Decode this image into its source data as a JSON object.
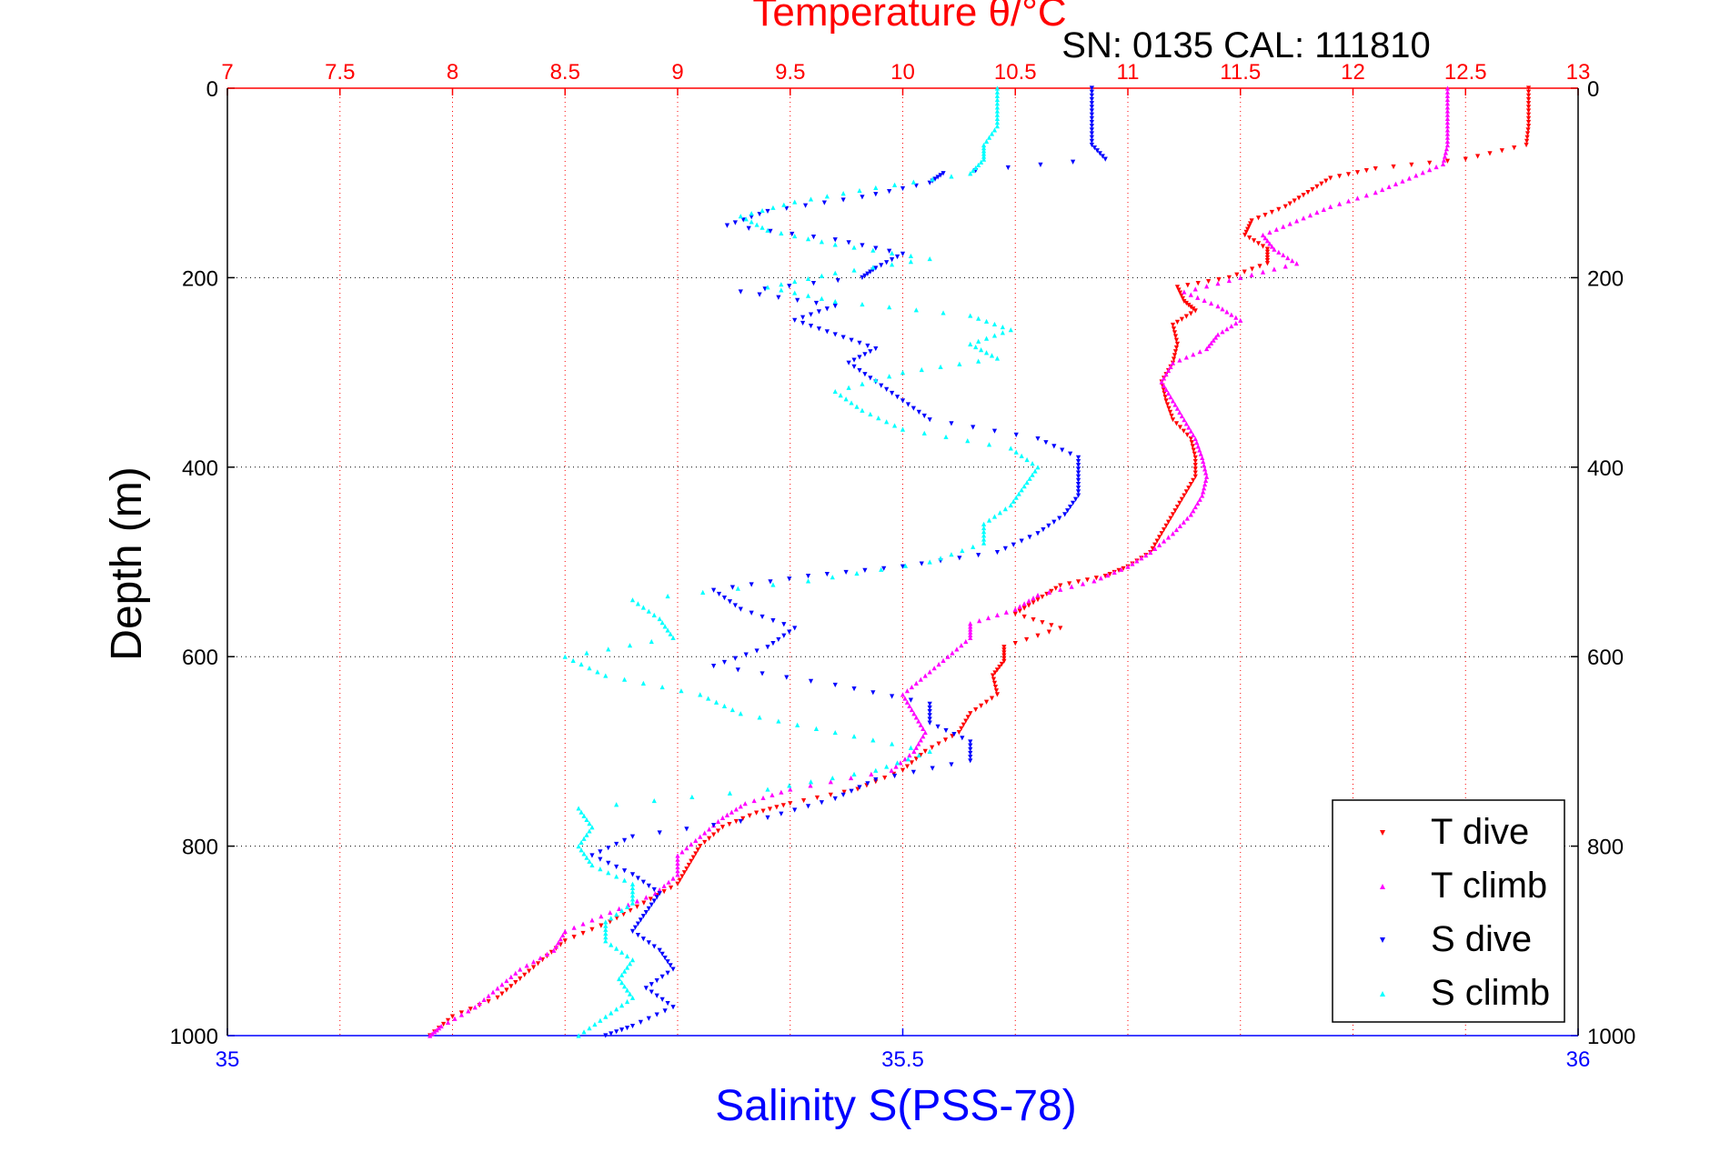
{
  "chart_data": {
    "type": "scatter",
    "title_top": "Temperature θ/°C",
    "subtitle": "SN: 0135  CAL: 111810",
    "ylabel": "Depth (m)",
    "xlabel_bottom": "Salinity S(PSS-78)",
    "top_axis": {
      "label": "Temperature θ/°C",
      "range": [
        7,
        13
      ],
      "ticks": [
        "7",
        "7.5",
        "8",
        "8.5",
        "9",
        "9.5",
        "10",
        "10.5",
        "11",
        "11.5",
        "12",
        "12.5",
        "13"
      ],
      "color": "#ff0000"
    },
    "bottom_axis": {
      "label": "Salinity S(PSS-78)",
      "range": [
        35,
        36
      ],
      "ticks": [
        "35",
        "35.5",
        "36"
      ],
      "color": "#0000ff"
    },
    "y_axis": {
      "range": [
        0,
        1000
      ],
      "reversed": true,
      "ticks": [
        "0",
        "200",
        "400",
        "600",
        "800",
        "1000"
      ]
    },
    "grid": true,
    "legend_position": "bottom-right",
    "series": [
      {
        "name": "T dive",
        "axis": "temperature",
        "marker": "down-triangle",
        "color": "#ff0000",
        "points": [
          [
            0,
            12.78
          ],
          [
            20,
            12.78
          ],
          [
            40,
            12.78
          ],
          [
            60,
            12.77
          ],
          [
            75,
            12.5
          ],
          [
            85,
            12.1
          ],
          [
            95,
            11.9
          ],
          [
            110,
            11.8
          ],
          [
            125,
            11.7
          ],
          [
            140,
            11.55
          ],
          [
            155,
            11.52
          ],
          [
            170,
            11.62
          ],
          [
            185,
            11.62
          ],
          [
            200,
            11.45
          ],
          [
            210,
            11.22
          ],
          [
            225,
            11.25
          ],
          [
            235,
            11.3
          ],
          [
            250,
            11.2
          ],
          [
            270,
            11.22
          ],
          [
            290,
            11.2
          ],
          [
            310,
            11.15
          ],
          [
            330,
            11.17
          ],
          [
            350,
            11.2
          ],
          [
            370,
            11.28
          ],
          [
            390,
            11.3
          ],
          [
            410,
            11.3
          ],
          [
            430,
            11.25
          ],
          [
            450,
            11.2
          ],
          [
            470,
            11.15
          ],
          [
            490,
            11.1
          ],
          [
            505,
            11.0
          ],
          [
            515,
            10.9
          ],
          [
            525,
            10.7
          ],
          [
            540,
            10.6
          ],
          [
            555,
            10.5
          ],
          [
            570,
            10.7
          ],
          [
            590,
            10.45
          ],
          [
            605,
            10.45
          ],
          [
            620,
            10.4
          ],
          [
            640,
            10.42
          ],
          [
            660,
            10.3
          ],
          [
            680,
            10.25
          ],
          [
            700,
            10.1
          ],
          [
            720,
            10.0
          ],
          [
            740,
            9.8
          ],
          [
            755,
            9.5
          ],
          [
            765,
            9.35
          ],
          [
            780,
            9.2
          ],
          [
            800,
            9.1
          ],
          [
            820,
            9.05
          ],
          [
            840,
            9.0
          ],
          [
            860,
            8.85
          ],
          [
            880,
            8.7
          ],
          [
            900,
            8.5
          ],
          [
            920,
            8.4
          ],
          [
            940,
            8.3
          ],
          [
            960,
            8.2
          ],
          [
            980,
            8.0
          ],
          [
            1000,
            7.9
          ]
        ]
      },
      {
        "name": "T climb",
        "axis": "temperature",
        "marker": "up-triangle",
        "color": "#ff00ff",
        "points": [
          [
            0,
            12.42
          ],
          [
            20,
            12.42
          ],
          [
            40,
            12.42
          ],
          [
            60,
            12.42
          ],
          [
            80,
            12.4
          ],
          [
            95,
            12.25
          ],
          [
            110,
            12.1
          ],
          [
            125,
            11.9
          ],
          [
            140,
            11.75
          ],
          [
            155,
            11.6
          ],
          [
            170,
            11.65
          ],
          [
            185,
            11.75
          ],
          [
            200,
            11.5
          ],
          [
            215,
            11.25
          ],
          [
            230,
            11.4
          ],
          [
            245,
            11.5
          ],
          [
            260,
            11.4
          ],
          [
            275,
            11.35
          ],
          [
            290,
            11.2
          ],
          [
            310,
            11.15
          ],
          [
            330,
            11.2
          ],
          [
            350,
            11.25
          ],
          [
            370,
            11.3
          ],
          [
            390,
            11.33
          ],
          [
            410,
            11.35
          ],
          [
            430,
            11.33
          ],
          [
            450,
            11.28
          ],
          [
            470,
            11.2
          ],
          [
            490,
            11.1
          ],
          [
            505,
            11.0
          ],
          [
            520,
            10.85
          ],
          [
            535,
            10.6
          ],
          [
            550,
            10.5
          ],
          [
            565,
            10.3
          ],
          [
            580,
            10.3
          ],
          [
            600,
            10.2
          ],
          [
            620,
            10.1
          ],
          [
            640,
            10.0
          ],
          [
            660,
            10.05
          ],
          [
            680,
            10.1
          ],
          [
            700,
            10.05
          ],
          [
            720,
            9.95
          ],
          [
            740,
            9.5
          ],
          [
            755,
            9.3
          ],
          [
            770,
            9.2
          ],
          [
            790,
            9.1
          ],
          [
            810,
            9.0
          ],
          [
            830,
            9.0
          ],
          [
            850,
            8.9
          ],
          [
            870,
            8.7
          ],
          [
            890,
            8.5
          ],
          [
            910,
            8.45
          ],
          [
            930,
            8.3
          ],
          [
            950,
            8.2
          ],
          [
            970,
            8.1
          ],
          [
            990,
            7.95
          ],
          [
            1000,
            7.9
          ]
        ]
      },
      {
        "name": "S dive",
        "axis": "salinity",
        "marker": "down-triangle",
        "color": "#0000ff",
        "points": [
          [
            0,
            35.64
          ],
          [
            20,
            35.64
          ],
          [
            40,
            35.64
          ],
          [
            60,
            35.64
          ],
          [
            75,
            35.65
          ],
          [
            90,
            35.53
          ],
          [
            100,
            35.52
          ],
          [
            115,
            35.47
          ],
          [
            130,
            35.4
          ],
          [
            145,
            35.37
          ],
          [
            160,
            35.45
          ],
          [
            175,
            35.5
          ],
          [
            190,
            35.48
          ],
          [
            200,
            35.47
          ],
          [
            215,
            35.38
          ],
          [
            230,
            35.45
          ],
          [
            245,
            35.42
          ],
          [
            260,
            35.45
          ],
          [
            275,
            35.48
          ],
          [
            290,
            35.46
          ],
          [
            310,
            35.48
          ],
          [
            330,
            35.5
          ],
          [
            350,
            35.52
          ],
          [
            370,
            35.6
          ],
          [
            390,
            35.63
          ],
          [
            410,
            35.63
          ],
          [
            430,
            35.63
          ],
          [
            450,
            35.62
          ],
          [
            470,
            35.6
          ],
          [
            490,
            35.57
          ],
          [
            505,
            35.5
          ],
          [
            515,
            35.43
          ],
          [
            530,
            35.36
          ],
          [
            550,
            35.38
          ],
          [
            570,
            35.42
          ],
          [
            590,
            35.4
          ],
          [
            610,
            35.36
          ],
          [
            630,
            35.45
          ],
          [
            650,
            35.52
          ],
          [
            670,
            35.52
          ],
          [
            690,
            35.55
          ],
          [
            710,
            35.55
          ],
          [
            730,
            35.48
          ],
          [
            750,
            35.45
          ],
          [
            770,
            35.4
          ],
          [
            790,
            35.3
          ],
          [
            810,
            35.27
          ],
          [
            830,
            35.3
          ],
          [
            850,
            35.32
          ],
          [
            870,
            35.31
          ],
          [
            890,
            35.3
          ],
          [
            910,
            35.32
          ],
          [
            930,
            35.33
          ],
          [
            950,
            35.31
          ],
          [
            970,
            35.33
          ],
          [
            990,
            35.3
          ],
          [
            1000,
            35.28
          ]
        ]
      },
      {
        "name": "S climb",
        "axis": "salinity",
        "marker": "up-triangle",
        "color": "#00ffff",
        "points": [
          [
            0,
            35.57
          ],
          [
            20,
            35.57
          ],
          [
            40,
            35.57
          ],
          [
            60,
            35.56
          ],
          [
            75,
            35.56
          ],
          [
            90,
            35.55
          ],
          [
            105,
            35.48
          ],
          [
            120,
            35.42
          ],
          [
            135,
            35.38
          ],
          [
            150,
            35.4
          ],
          [
            165,
            35.45
          ],
          [
            180,
            35.52
          ],
          [
            195,
            35.45
          ],
          [
            210,
            35.4
          ],
          [
            225,
            35.45
          ],
          [
            240,
            35.55
          ],
          [
            255,
            35.58
          ],
          [
            270,
            35.55
          ],
          [
            285,
            35.57
          ],
          [
            300,
            35.5
          ],
          [
            320,
            35.45
          ],
          [
            340,
            35.47
          ],
          [
            360,
            35.5
          ],
          [
            380,
            35.58
          ],
          [
            400,
            35.6
          ],
          [
            420,
            35.59
          ],
          [
            440,
            35.58
          ],
          [
            460,
            35.56
          ],
          [
            480,
            35.56
          ],
          [
            500,
            35.52
          ],
          [
            520,
            35.43
          ],
          [
            540,
            35.3
          ],
          [
            560,
            35.32
          ],
          [
            580,
            35.33
          ],
          [
            600,
            35.25
          ],
          [
            620,
            35.28
          ],
          [
            640,
            35.35
          ],
          [
            660,
            35.38
          ],
          [
            680,
            35.45
          ],
          [
            700,
            35.52
          ],
          [
            720,
            35.48
          ],
          [
            740,
            35.4
          ],
          [
            760,
            35.26
          ],
          [
            780,
            35.27
          ],
          [
            800,
            35.26
          ],
          [
            820,
            35.27
          ],
          [
            840,
            35.3
          ],
          [
            860,
            35.3
          ],
          [
            880,
            35.28
          ],
          [
            900,
            35.28
          ],
          [
            920,
            35.3
          ],
          [
            940,
            35.29
          ],
          [
            960,
            35.3
          ],
          [
            980,
            35.28
          ],
          [
            1000,
            35.26
          ]
        ]
      }
    ],
    "legend": [
      {
        "label": "T dive",
        "color": "#ff0000",
        "marker": "down-triangle"
      },
      {
        "label": "T climb",
        "color": "#ff00ff",
        "marker": "up-triangle"
      },
      {
        "label": "S dive",
        "color": "#0000ff",
        "marker": "down-triangle"
      },
      {
        "label": "S climb",
        "color": "#00ffff",
        "marker": "up-triangle"
      }
    ]
  }
}
